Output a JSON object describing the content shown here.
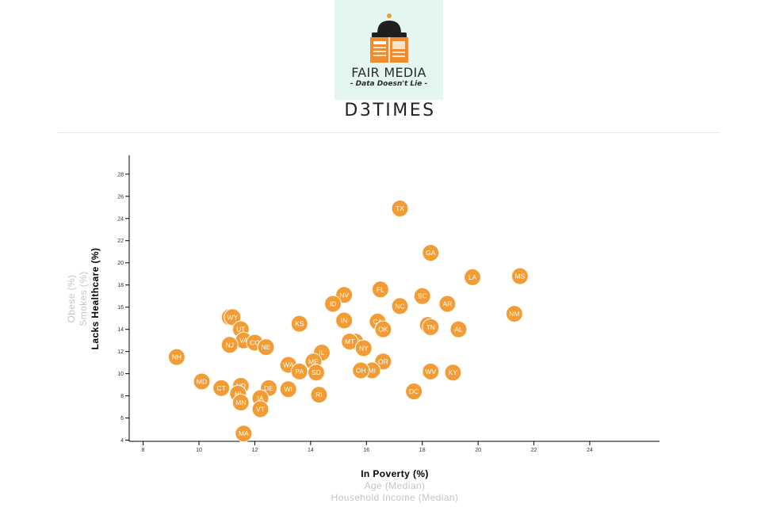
{
  "logo": {
    "name": "FAIR MEDIA",
    "tagline": "- Data Doesn't Lie -"
  },
  "header": {
    "title": "D3TIMES"
  },
  "colors": {
    "marker": "#f39c35",
    "logo_bg": "#e3f6f1"
  },
  "chart_data": {
    "type": "scatter",
    "x_axis": {
      "active_label": "In Poverty (%)",
      "alternate_labels": [
        "Age (Median)",
        "Household Income (Median)"
      ],
      "range": [
        7.5,
        26.5
      ],
      "ticks": [
        8,
        10,
        12,
        14,
        16,
        18,
        20,
        22,
        24
      ]
    },
    "y_axis": {
      "active_label": "Lacks Healthcare (%)",
      "alternate_labels": [
        "Smokes (%)",
        "Obese (%)"
      ],
      "range": [
        3.9,
        29.7
      ],
      "ticks": [
        4,
        6,
        8,
        10,
        12,
        14,
        16,
        18,
        20,
        22,
        24,
        26,
        28
      ]
    },
    "grid": false,
    "points": [
      {
        "abbr": "TX",
        "x": 17.2,
        "y": 24.9
      },
      {
        "abbr": "GA",
        "x": 18.3,
        "y": 20.9
      },
      {
        "abbr": "MS",
        "x": 21.5,
        "y": 18.8
      },
      {
        "abbr": "LA",
        "x": 19.8,
        "y": 18.7
      },
      {
        "abbr": "FL",
        "x": 16.5,
        "y": 17.6
      },
      {
        "abbr": "NV",
        "x": 15.2,
        "y": 17.1
      },
      {
        "abbr": "SC",
        "x": 18.0,
        "y": 17.0
      },
      {
        "abbr": "ID",
        "x": 14.8,
        "y": 16.3
      },
      {
        "abbr": "AR",
        "x": 18.9,
        "y": 16.3
      },
      {
        "abbr": "NC",
        "x": 17.2,
        "y": 16.1
      },
      {
        "abbr": "NM",
        "x": 21.3,
        "y": 15.4
      },
      {
        "abbr": "AK",
        "x": 11.1,
        "y": 15.1
      },
      {
        "abbr": "WY",
        "x": 11.2,
        "y": 15.1
      },
      {
        "abbr": "IN",
        "x": 15.2,
        "y": 14.8
      },
      {
        "abbr": "CA",
        "x": 16.4,
        "y": 14.7
      },
      {
        "abbr": "KS",
        "x": 13.6,
        "y": 14.5
      },
      {
        "abbr": "AZ",
        "x": 18.2,
        "y": 14.4
      },
      {
        "abbr": "TN",
        "x": 18.3,
        "y": 14.2
      },
      {
        "abbr": "UT",
        "x": 11.5,
        "y": 14.0
      },
      {
        "abbr": "OK",
        "x": 16.6,
        "y": 14.0
      },
      {
        "abbr": "AL",
        "x": 19.3,
        "y": 14.0
      },
      {
        "abbr": "VA",
        "x": 11.6,
        "y": 13.0
      },
      {
        "abbr": "MO",
        "x": 15.6,
        "y": 12.9
      },
      {
        "abbr": "MT",
        "x": 15.4,
        "y": 12.9
      },
      {
        "abbr": "CO",
        "x": 12.0,
        "y": 12.8
      },
      {
        "abbr": "NJ",
        "x": 11.1,
        "y": 12.6
      },
      {
        "abbr": "NE",
        "x": 12.4,
        "y": 12.4
      },
      {
        "abbr": "NY",
        "x": 15.9,
        "y": 12.3
      },
      {
        "abbr": "IL",
        "x": 14.4,
        "y": 11.9
      },
      {
        "abbr": "NH",
        "x": 9.2,
        "y": 11.5
      },
      {
        "abbr": "ME",
        "x": 14.1,
        "y": 11.1
      },
      {
        "abbr": "OR",
        "x": 16.6,
        "y": 11.1
      },
      {
        "abbr": "WA",
        "x": 13.2,
        "y": 10.8
      },
      {
        "abbr": "MI",
        "x": 16.2,
        "y": 10.3
      },
      {
        "abbr": "OH",
        "x": 15.8,
        "y": 10.3
      },
      {
        "abbr": "PA",
        "x": 13.6,
        "y": 10.2
      },
      {
        "abbr": "WV",
        "x": 18.3,
        "y": 10.2
      },
      {
        "abbr": "SD",
        "x": 14.2,
        "y": 10.1
      },
      {
        "abbr": "KY",
        "x": 19.1,
        "y": 10.1
      },
      {
        "abbr": "MD",
        "x": 10.1,
        "y": 9.3
      },
      {
        "abbr": "ND",
        "x": 11.5,
        "y": 8.9
      },
      {
        "abbr": "DE",
        "x": 12.5,
        "y": 8.7
      },
      {
        "abbr": "CT",
        "x": 10.8,
        "y": 8.7
      },
      {
        "abbr": "WI",
        "x": 13.2,
        "y": 8.6
      },
      {
        "abbr": "DC",
        "x": 17.7,
        "y": 8.4
      },
      {
        "abbr": "HI",
        "x": 11.4,
        "y": 8.2
      },
      {
        "abbr": "RI",
        "x": 14.3,
        "y": 8.1
      },
      {
        "abbr": "IA",
        "x": 12.2,
        "y": 7.8
      },
      {
        "abbr": "MN",
        "x": 11.5,
        "y": 7.4
      },
      {
        "abbr": "VT",
        "x": 12.2,
        "y": 6.8
      },
      {
        "abbr": "MA",
        "x": 11.6,
        "y": 4.6
      }
    ]
  }
}
